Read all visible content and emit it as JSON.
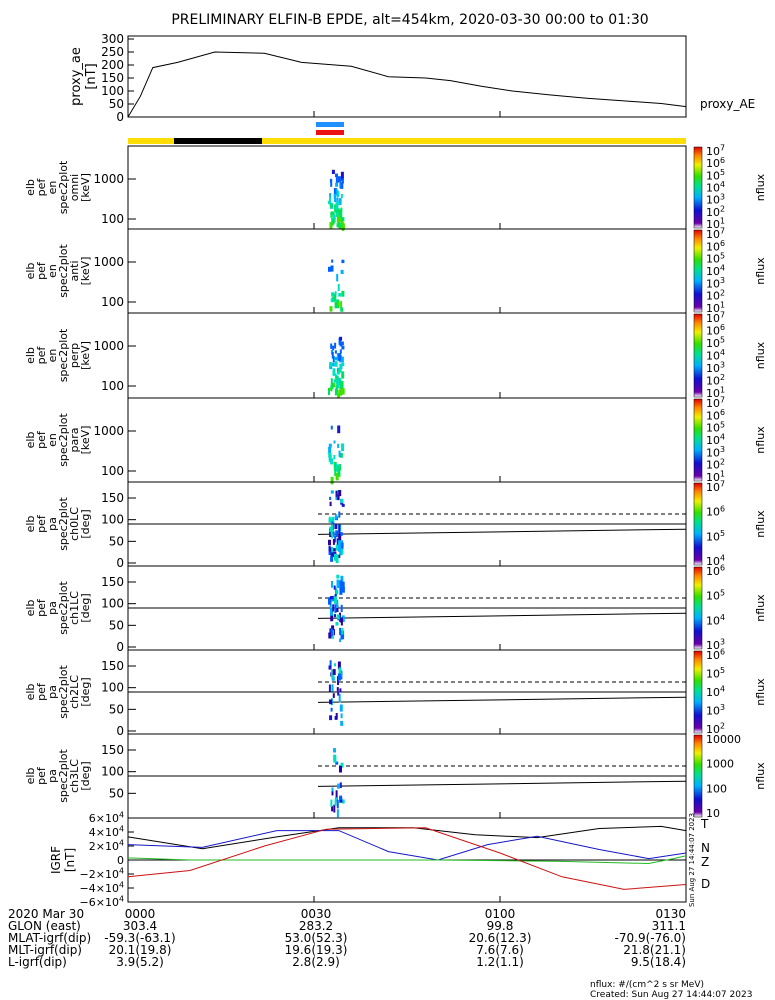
{
  "title": "PRELIMINARY ELFIN-B EPDE, alt=454km, 2020-03-30 00:00 to 01:30",
  "time_ticks": [
    "0000",
    "0030",
    "0100",
    "0130"
  ],
  "colors": {
    "yellow": "#ffdd00",
    "black": "#000000",
    "blue": "#1e90ff",
    "red": "#ee1111"
  },
  "chart_data": [
    {
      "type": "line",
      "panel": "proxy_ae",
      "ylabel": "proxy_ae [nT]",
      "right_label": "proxy_AE",
      "ylim": [
        0,
        300
      ],
      "yticks": [
        "300",
        "250",
        "200",
        "150",
        "100",
        "50",
        "0"
      ],
      "x_minutes": [
        0,
        2,
        4,
        8,
        14,
        22,
        28,
        36,
        42,
        48,
        52,
        57,
        62,
        68,
        74,
        80,
        86,
        90
      ],
      "values": [
        0,
        80,
        190,
        210,
        250,
        245,
        210,
        195,
        155,
        150,
        140,
        118,
        100,
        85,
        72,
        62,
        52,
        40
      ]
    },
    {
      "type": "heatmap",
      "panel": "spec-omni",
      "ylabel": "elb pef en spec2plot omni [keV]",
      "yticks": [
        "1000",
        "100"
      ],
      "colorbar": {
        "label": "nflux",
        "ticks": [
          "10^7",
          "10^6",
          "10^5",
          "10^4",
          "10^3",
          "10^2",
          "10^1"
        ]
      }
    },
    {
      "type": "heatmap",
      "panel": "spec-anti",
      "ylabel": "elb pef en spec2plot anti [keV]",
      "yticks": [
        "1000",
        "100"
      ],
      "colorbar": {
        "label": "nflux",
        "ticks": [
          "10^7",
          "10^6",
          "10^5",
          "10^4",
          "10^3",
          "10^2",
          "10^1"
        ]
      }
    },
    {
      "type": "heatmap",
      "panel": "spec-perp",
      "ylabel": "elb pef en spec2plot perp [keV]",
      "yticks": [
        "1000",
        "100"
      ],
      "colorbar": {
        "label": "nflux",
        "ticks": [
          "10^7",
          "10^6",
          "10^5",
          "10^4",
          "10^3",
          "10^2",
          "10^1"
        ]
      }
    },
    {
      "type": "heatmap",
      "panel": "spec-para",
      "ylabel": "elb pef en spec2plot para [keV]",
      "yticks": [
        "1000",
        "100"
      ],
      "colorbar": {
        "label": "nflux",
        "ticks": [
          "10^7",
          "10^6",
          "10^5",
          "10^4",
          "10^3",
          "10^2",
          "10^1"
        ]
      }
    },
    {
      "type": "heatmap",
      "panel": "pa-ch0",
      "ylabel": "elb pef pa spec2plot ch0LC [deg]",
      "yticks": [
        "150",
        "100",
        "50",
        "0"
      ],
      "colorbar": {
        "label": "nflux",
        "ticks": [
          "10^7",
          "10^6",
          "10^5",
          "10^4"
        ]
      }
    },
    {
      "type": "heatmap",
      "panel": "pa-ch1",
      "ylabel": "elb pef pa spec2plot ch1LC [deg]",
      "yticks": [
        "150",
        "100",
        "50",
        "0"
      ],
      "colorbar": {
        "label": "nflux",
        "ticks": [
          "10^6",
          "10^5",
          "10^4",
          "10^3"
        ]
      }
    },
    {
      "type": "heatmap",
      "panel": "pa-ch2",
      "ylabel": "elb pef pa spec2plot ch2LC [deg]",
      "yticks": [
        "150",
        "100",
        "50",
        "0"
      ],
      "colorbar": {
        "label": "nflux",
        "ticks": [
          "10^6",
          "10^5",
          "10^4",
          "10^3",
          "10^2"
        ]
      }
    },
    {
      "type": "heatmap",
      "panel": "pa-ch3",
      "ylabel": "elb pef pa spec2plot ch3LC [deg]",
      "yticks": [
        "150",
        "100",
        "50"
      ],
      "colorbar": {
        "label": "nflux",
        "ticks": [
          "10000",
          "1000",
          "100",
          "10"
        ]
      }
    },
    {
      "type": "line",
      "panel": "igrf",
      "ylabel": "IGRF [nT]",
      "yticks": [
        "6×10^4",
        "4×10^4",
        "2×10^4",
        "0",
        "−2×10^4",
        "−4×10^4",
        "−6×10^4"
      ],
      "ylim": [
        -60000,
        60000
      ],
      "side_note": "Sun Aug 27 14:44:07 2023",
      "series": [
        {
          "name": "T",
          "color": "#000000",
          "x_minutes": [
            0,
            12,
            24,
            34,
            46,
            56,
            66,
            76,
            86,
            90
          ],
          "values": [
            33000,
            16000,
            33000,
            46000,
            46000,
            36000,
            32000,
            45000,
            48000,
            42000
          ]
        },
        {
          "name": "N",
          "color": "#1515c8",
          "x_minutes": [
            0,
            12,
            24,
            34,
            42,
            50,
            58,
            66,
            76,
            84,
            90
          ],
          "values": [
            22000,
            18000,
            42000,
            42000,
            12000,
            0,
            22000,
            34000,
            15000,
            2000,
            10000
          ]
        },
        {
          "name": "Z",
          "color": "#22bb22",
          "x_minutes": [
            0,
            10,
            30,
            50,
            70,
            84,
            88,
            90
          ],
          "values": [
            3000,
            0,
            0,
            0,
            -2000,
            -5000,
            2000,
            6000
          ]
        },
        {
          "name": "D",
          "color": "#cc1111",
          "x_minutes": [
            0,
            10,
            22,
            32,
            48,
            60,
            70,
            80,
            90
          ],
          "values": [
            -24000,
            -15000,
            20000,
            44000,
            46000,
            10000,
            -24000,
            -42000,
            -35000
          ]
        }
      ]
    }
  ],
  "orbit_table": {
    "rows": [
      {
        "label": "2020 Mar 30",
        "values": [
          "0000",
          "0030",
          "0100",
          "0130"
        ]
      },
      {
        "label": "GLON (east)",
        "values": [
          "303.4",
          "283.2",
          "99.8",
          "311.1"
        ]
      },
      {
        "label": "MLAT-igrf(dip)",
        "values": [
          "-59.3(-63.1)",
          "53.0(52.3)",
          "20.6(12.3)",
          "-70.9(-76.0)"
        ]
      },
      {
        "label": "MLT-igrf(dip)",
        "values": [
          "20.1(19.8)",
          "19.6(19.3)",
          "7.6(7.6)",
          "21.8(21.1)"
        ]
      },
      {
        "label": "L-igrf(dip)",
        "values": [
          "3.9(5.2)",
          "2.8(2.9)",
          "1.2(1.1)",
          "9.5(18.4)"
        ]
      }
    ]
  },
  "footer": {
    "units": "nflux: #/(cm^2 s sr MeV)",
    "created": "Created: Sun Aug 27 14:44:07 2023"
  }
}
